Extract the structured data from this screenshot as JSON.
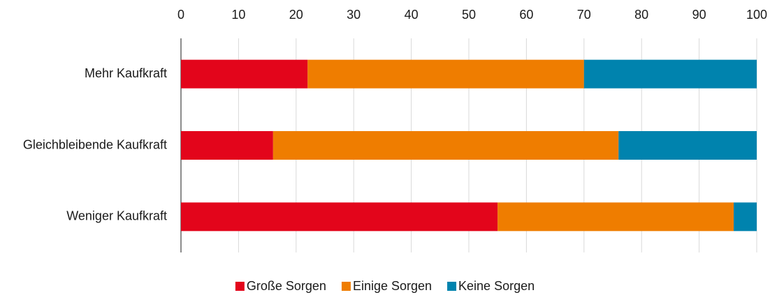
{
  "chart_data": {
    "type": "stacked-barh",
    "categories": [
      "Mehr Kaufkraft",
      "Gleichbleibende Kaufkraft",
      "Weniger Kaufkraft"
    ],
    "series": [
      {
        "name": "Große Sorgen",
        "color": "#e3051b",
        "values": [
          22,
          16,
          55
        ]
      },
      {
        "name": "Einige Sorgen",
        "color": "#ef7d00",
        "values": [
          48,
          60,
          41
        ]
      },
      {
        "name": "Keine Sorgen",
        "color": "#0083ae",
        "values": [
          30,
          24,
          4
        ]
      }
    ],
    "xlim": [
      0,
      100
    ],
    "xticks": [
      0,
      10,
      20,
      30,
      40,
      50,
      60,
      70,
      80,
      90,
      100
    ],
    "grid": true,
    "legend": "bottom"
  }
}
